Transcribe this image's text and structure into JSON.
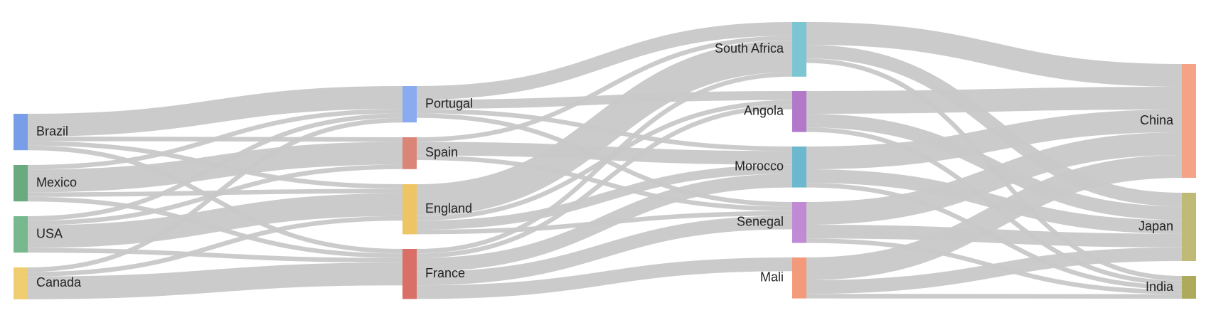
{
  "chart_data": {
    "type": "sankey",
    "nodes": [
      {
        "name": "Brazil",
        "color": "#779ee6"
      },
      {
        "name": "Mexico",
        "color": "#6aaa7f"
      },
      {
        "name": "USA",
        "color": "#77b88f"
      },
      {
        "name": "Canada",
        "color": "#f0cd70"
      },
      {
        "name": "Portugal",
        "color": "#8aabef"
      },
      {
        "name": "Spain",
        "color": "#db8577"
      },
      {
        "name": "England",
        "color": "#eec565"
      },
      {
        "name": "France",
        "color": "#d96f66"
      },
      {
        "name": "South Africa",
        "color": "#7cc6d3"
      },
      {
        "name": "Angola",
        "color": "#b278c9"
      },
      {
        "name": "Morocco",
        "color": "#6cb8cf"
      },
      {
        "name": "Senegal",
        "color": "#c08ad4"
      },
      {
        "name": "Mali",
        "color": "#f29a7a"
      },
      {
        "name": "China",
        "color": "#f4a386"
      },
      {
        "name": "Japan",
        "color": "#bfbb77"
      },
      {
        "name": "India",
        "color": "#aeaa5c"
      }
    ],
    "links": [
      {
        "source": "Brazil",
        "target": "Portugal",
        "value": 5
      },
      {
        "source": "Brazil",
        "target": "France",
        "value": 1
      },
      {
        "source": "Brazil",
        "target": "Spain",
        "value": 1
      },
      {
        "source": "Brazil",
        "target": "England",
        "value": 1
      },
      {
        "source": "Canada",
        "target": "Portugal",
        "value": 1
      },
      {
        "source": "Canada",
        "target": "France",
        "value": 5
      },
      {
        "source": "Canada",
        "target": "England",
        "value": 1
      },
      {
        "source": "Mexico",
        "target": "Portugal",
        "value": 1
      },
      {
        "source": "Mexico",
        "target": "France",
        "value": 1
      },
      {
        "source": "Mexico",
        "target": "Spain",
        "value": 5
      },
      {
        "source": "Mexico",
        "target": "England",
        "value": 1
      },
      {
        "source": "USA",
        "target": "Portugal",
        "value": 1
      },
      {
        "source": "USA",
        "target": "France",
        "value": 1
      },
      {
        "source": "USA",
        "target": "Spain",
        "value": 1
      },
      {
        "source": "USA",
        "target": "England",
        "value": 5
      },
      {
        "source": "Portugal",
        "target": "Angola",
        "value": 2
      },
      {
        "source": "Portugal",
        "target": "Senegal",
        "value": 1
      },
      {
        "source": "Portugal",
        "target": "Morocco",
        "value": 1
      },
      {
        "source": "Portugal",
        "target": "South Africa",
        "value": 3
      },
      {
        "source": "France",
        "target": "Angola",
        "value": 1
      },
      {
        "source": "France",
        "target": "Senegal",
        "value": 3
      },
      {
        "source": "France",
        "target": "Mali",
        "value": 3
      },
      {
        "source": "France",
        "target": "Morocco",
        "value": 3
      },
      {
        "source": "France",
        "target": "South Africa",
        "value": 1
      },
      {
        "source": "Spain",
        "target": "Senegal",
        "value": 1
      },
      {
        "source": "Spain",
        "target": "Morocco",
        "value": 3
      },
      {
        "source": "Spain",
        "target": "South Africa",
        "value": 1
      },
      {
        "source": "England",
        "target": "Angola",
        "value": 1
      },
      {
        "source": "England",
        "target": "Senegal",
        "value": 1
      },
      {
        "source": "England",
        "target": "Morocco",
        "value": 2
      },
      {
        "source": "England",
        "target": "South Africa",
        "value": 7
      },
      {
        "source": "South Africa",
        "target": "China",
        "value": 5
      },
      {
        "source": "South Africa",
        "target": "India",
        "value": 1
      },
      {
        "source": "South Africa",
        "target": "Japan",
        "value": 3
      },
      {
        "source": "Angola",
        "target": "China",
        "value": 5
      },
      {
        "source": "Angola",
        "target": "India",
        "value": 1
      },
      {
        "source": "Angola",
        "target": "Japan",
        "value": 3
      },
      {
        "source": "Senegal",
        "target": "China",
        "value": 5
      },
      {
        "source": "Senegal",
        "target": "India",
        "value": 1
      },
      {
        "source": "Senegal",
        "target": "Japan",
        "value": 3
      },
      {
        "source": "Mali",
        "target": "China",
        "value": 5
      },
      {
        "source": "Mali",
        "target": "India",
        "value": 1
      },
      {
        "source": "Mali",
        "target": "Japan",
        "value": 3
      },
      {
        "source": "Morocco",
        "target": "China",
        "value": 5
      },
      {
        "source": "Morocco",
        "target": "India",
        "value": 1
      },
      {
        "source": "Morocco",
        "target": "Japan",
        "value": 3
      }
    ]
  }
}
